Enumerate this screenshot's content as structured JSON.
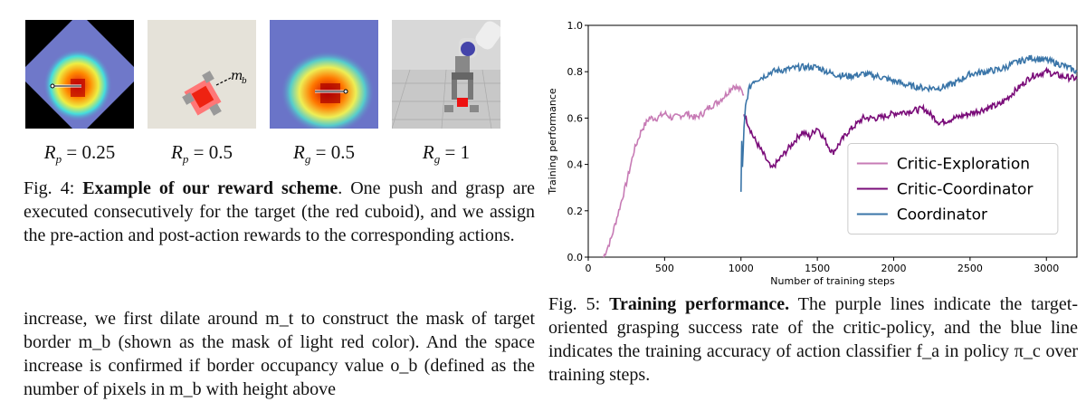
{
  "figure4": {
    "panel_labels": [
      "R_p = 0.25",
      "R_p = 0.5",
      "R_g = 0.5",
      "R_g = 1"
    ],
    "panel_label_parts": [
      {
        "sym": "R",
        "sub": "p",
        "val": "= 0.25"
      },
      {
        "sym": "R",
        "sub": "p",
        "val": "= 0.5"
      },
      {
        "sym": "R",
        "sub": "g",
        "val": "= 0.5"
      },
      {
        "sym": "R",
        "sub": "g",
        "val": "= 1"
      }
    ],
    "annotation": "m_b",
    "caption_prefix": "Fig. 4:",
    "caption_bold": "Example of our reward scheme",
    "caption_rest": ". One push and grasp are executed consecutively for the target (the red cuboid), and we assign the pre-action and post-action rewards to the corresponding actions."
  },
  "body_text": "increase, we first dilate around m_t to construct the mask of target border m_b (shown as the mask of light red color). And the space increase is confirmed if border occupancy value o_b (defined as the number of pixels in m_b with height above",
  "figure5": {
    "caption_prefix": "Fig. 5:",
    "caption_bold": "Training performance.",
    "caption_rest": " The purple lines indicate the target-oriented grasping success rate of the critic-policy, and the blue line indicates the training accuracy of action classifier f_a in policy π_c over training steps."
  },
  "chart_data": {
    "type": "line",
    "xlabel": "Number of training steps",
    "ylabel": "Training performance",
    "xlim": [
      0,
      3200
    ],
    "ylim": [
      0.0,
      1.0
    ],
    "xticks": [
      0,
      500,
      1000,
      1500,
      2000,
      2500,
      3000
    ],
    "yticks": [
      0.0,
      0.2,
      0.4,
      0.6,
      0.8,
      1.0
    ],
    "legend_position": "lower-right",
    "series": [
      {
        "name": "Critic-Exploration",
        "color": "#c77bb5",
        "x": [
          100,
          150,
          200,
          250,
          300,
          350,
          400,
          450,
          500,
          550,
          600,
          650,
          700,
          750,
          800,
          850,
          900,
          950,
          1000,
          1020
        ],
        "y": [
          0.0,
          0.08,
          0.2,
          0.32,
          0.46,
          0.55,
          0.6,
          0.6,
          0.62,
          0.6,
          0.61,
          0.62,
          0.6,
          0.62,
          0.65,
          0.67,
          0.7,
          0.74,
          0.72,
          0.7
        ]
      },
      {
        "name": "Critic-Coordinator",
        "color": "#7a0c79",
        "x": [
          1020,
          1080,
          1150,
          1200,
          1250,
          1300,
          1350,
          1400,
          1450,
          1500,
          1600,
          1700,
          1800,
          1900,
          2000,
          2100,
          2200,
          2300,
          2400,
          2500,
          2600,
          2700,
          2800,
          2900,
          3000,
          3100,
          3200
        ],
        "y": [
          0.62,
          0.52,
          0.44,
          0.38,
          0.42,
          0.46,
          0.5,
          0.54,
          0.52,
          0.56,
          0.45,
          0.54,
          0.6,
          0.6,
          0.62,
          0.63,
          0.64,
          0.58,
          0.6,
          0.62,
          0.64,
          0.66,
          0.72,
          0.78,
          0.8,
          0.78,
          0.77
        ]
      },
      {
        "name": "Coordinator",
        "color": "#3a75a8",
        "x": [
          1000,
          1005,
          1010,
          1020,
          1030,
          1050,
          1080,
          1150,
          1200,
          1300,
          1400,
          1500,
          1600,
          1700,
          1800,
          1900,
          2000,
          2100,
          2200,
          2300,
          2400,
          2500,
          2600,
          2700,
          2800,
          2900,
          3000,
          3100,
          3200
        ],
        "y": [
          0.28,
          0.5,
          0.38,
          0.55,
          0.65,
          0.72,
          0.76,
          0.78,
          0.8,
          0.81,
          0.82,
          0.82,
          0.79,
          0.78,
          0.79,
          0.78,
          0.76,
          0.74,
          0.73,
          0.73,
          0.75,
          0.79,
          0.8,
          0.81,
          0.84,
          0.86,
          0.85,
          0.83,
          0.8
        ]
      }
    ]
  }
}
